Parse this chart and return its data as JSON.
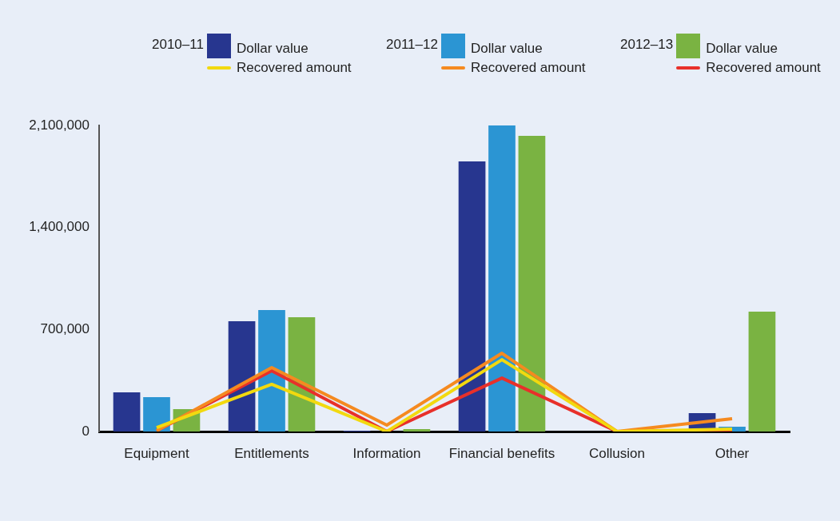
{
  "chart_data": {
    "type": "bar",
    "categories": [
      "Equipment",
      "Entitlements",
      "Information",
      "Financial benefits",
      "Collusion",
      "Other"
    ],
    "series": [
      {
        "name": "Dollar value",
        "color": "#27368f",
        "values": [
          269000,
          757000,
          5000,
          1853000,
          0,
          126000
        ]
      },
      {
        "name": "Recovered amount",
        "type": "line",
        "color": "#f2d90f",
        "values": [
          27000,
          324000,
          0,
          493000,
          0,
          16000
        ]
      },
      {
        "name": "Dollar value",
        "color": "#2b95d3",
        "values": [
          236000,
          833000,
          0,
          2100000,
          0,
          33000
        ]
      },
      {
        "name": "Recovered amount",
        "type": "line",
        "color": "#f58a20",
        "values": [
          5000,
          439000,
          44000,
          537000,
          0,
          88000
        ]
      },
      {
        "name": "Dollar value",
        "color": "#7ab342",
        "values": [
          154000,
          784000,
          16000,
          2029000,
          0,
          822000
        ]
      },
      {
        "name": "Recovered amount",
        "type": "line",
        "color": "#e8302a",
        "values": [
          5000,
          417000,
          0,
          367000,
          0,
          0
        ]
      }
    ],
    "annotations": [
      "2010–11",
      "2011–12",
      "2012–13"
    ],
    "ylim": [
      0,
      2100000
    ],
    "yticks": [
      0,
      {
        "value": 700000,
        "label": "700,000"
      },
      {
        "value": 1400000,
        "label": "1,400,000"
      },
      {
        "value": 2100000,
        "label": "2,100,000"
      }
    ],
    "grid": false,
    "legend": "top",
    "marker": "none",
    "line_style": "solid"
  }
}
